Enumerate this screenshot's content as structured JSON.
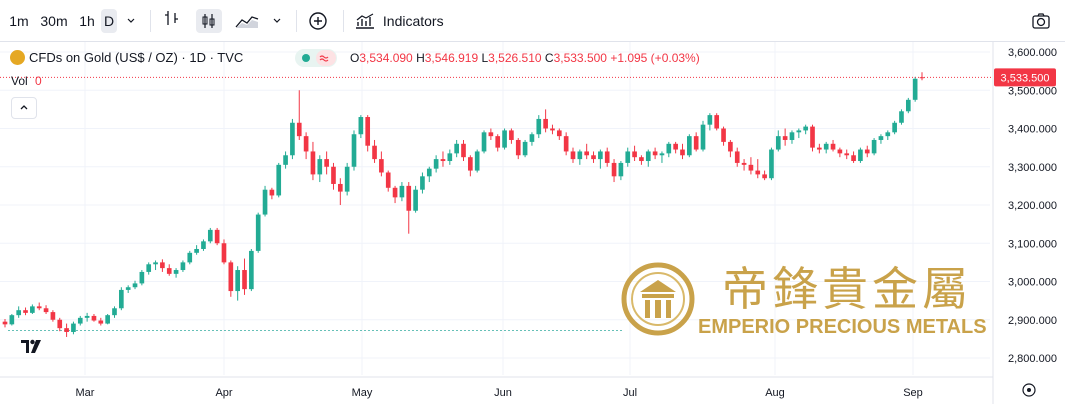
{
  "toolbar": {
    "intervals": [
      "1m",
      "30m",
      "1h",
      "D"
    ],
    "indicators_label": "Indicators",
    "icons": [
      "bar-style-icon",
      "candles-icon",
      "area-chart-icon",
      "chevron-down-icon",
      "add-comparison-icon",
      "indicators-icon",
      "camera-icon"
    ]
  },
  "legend": {
    "symbol": "CFDs on Gold (US$ / OZ) · 1D · TVC",
    "open_label": "O",
    "open": "3,534.090",
    "high_label": "H",
    "high": "3,546.919",
    "low_label": "L",
    "low": "3,526.510",
    "close_label": "C",
    "close": "3,533.500",
    "change": "+1.095 (+0.03%)",
    "vol_label": "Vol",
    "vol_value": "0"
  },
  "price_badge": "3,533.500",
  "watermark": {
    "chinese": "帝鋒貴金屬",
    "english": "EMPERIO PRECIOUS METALS",
    "tv_logo": "TV"
  },
  "colors": {
    "up": "#22ab94",
    "down": "#f23645",
    "badge": "#f23645",
    "gold": "#c9a24a"
  },
  "chart_data": {
    "type": "candlestick",
    "title": "CFDs on Gold (US$ / OZ) · 1D · TVC",
    "y_ticks": [
      "3,600.000",
      "3,500.000",
      "3,400.000",
      "3,300.000",
      "3,200.000",
      "3,100.000",
      "3,000.000",
      "2,900.000",
      "2,800.000"
    ],
    "x_ticks": [
      "Mar",
      "Apr",
      "May",
      "Jun",
      "Jul",
      "Aug",
      "Sep"
    ],
    "ylim": [
      2760,
      3640
    ],
    "last_price": 3533.5,
    "reference_line": 2872,
    "candles": [
      [
        2895,
        2902,
        2880,
        2888
      ],
      [
        2888,
        2915,
        2885,
        2912
      ],
      [
        2912,
        2935,
        2905,
        2925
      ],
      [
        2925,
        2932,
        2912,
        2918
      ],
      [
        2918,
        2940,
        2915,
        2935
      ],
      [
        2935,
        2945,
        2925,
        2930
      ],
      [
        2930,
        2938,
        2915,
        2920
      ],
      [
        2920,
        2925,
        2895,
        2900
      ],
      [
        2900,
        2905,
        2870,
        2878
      ],
      [
        2878,
        2890,
        2855,
        2868
      ],
      [
        2868,
        2895,
        2862,
        2890
      ],
      [
        2890,
        2910,
        2885,
        2905
      ],
      [
        2905,
        2918,
        2895,
        2910
      ],
      [
        2910,
        2915,
        2895,
        2898
      ],
      [
        2898,
        2905,
        2885,
        2890
      ],
      [
        2890,
        2915,
        2888,
        2912
      ],
      [
        2912,
        2935,
        2905,
        2930
      ],
      [
        2930,
        2985,
        2925,
        2978
      ],
      [
        2978,
        2990,
        2970,
        2985
      ],
      [
        2985,
        3002,
        2980,
        2995
      ],
      [
        2995,
        3030,
        2990,
        3025
      ],
      [
        3025,
        3050,
        3018,
        3045
      ],
      [
        3045,
        3055,
        3030,
        3050
      ],
      [
        3050,
        3058,
        3025,
        3035
      ],
      [
        3035,
        3045,
        3015,
        3020
      ],
      [
        3020,
        3035,
        3010,
        3030
      ],
      [
        3030,
        3055,
        3025,
        3050
      ],
      [
        3050,
        3080,
        3045,
        3075
      ],
      [
        3075,
        3095,
        3070,
        3085
      ],
      [
        3085,
        3110,
        3080,
        3105
      ],
      [
        3105,
        3140,
        3100,
        3135
      ],
      [
        3135,
        3140,
        3095,
        3100
      ],
      [
        3100,
        3110,
        3045,
        3050
      ],
      [
        3050,
        3055,
        2960,
        2975
      ],
      [
        2975,
        3040,
        2950,
        3030
      ],
      [
        3030,
        3060,
        2965,
        2980
      ],
      [
        2980,
        3085,
        2975,
        3080
      ],
      [
        3080,
        3180,
        3075,
        3175
      ],
      [
        3175,
        3250,
        3170,
        3240
      ],
      [
        3240,
        3245,
        3215,
        3225
      ],
      [
        3225,
        3310,
        3220,
        3305
      ],
      [
        3305,
        3340,
        3295,
        3330
      ],
      [
        3330,
        3425,
        3320,
        3415
      ],
      [
        3415,
        3500,
        3370,
        3380
      ],
      [
        3380,
        3390,
        3320,
        3340
      ],
      [
        3340,
        3365,
        3265,
        3280
      ],
      [
        3280,
        3330,
        3260,
        3320
      ],
      [
        3320,
        3340,
        3280,
        3300
      ],
      [
        3300,
        3310,
        3240,
        3255
      ],
      [
        3255,
        3270,
        3200,
        3235
      ],
      [
        3235,
        3310,
        3225,
        3300
      ],
      [
        3300,
        3395,
        3290,
        3385
      ],
      [
        3385,
        3435,
        3375,
        3430
      ],
      [
        3430,
        3435,
        3340,
        3355
      ],
      [
        3355,
        3370,
        3310,
        3320
      ],
      [
        3320,
        3340,
        3275,
        3285
      ],
      [
        3285,
        3290,
        3235,
        3245
      ],
      [
        3245,
        3250,
        3205,
        3220
      ],
      [
        3220,
        3260,
        3210,
        3250
      ],
      [
        3250,
        3260,
        3125,
        3185
      ],
      [
        3185,
        3250,
        3180,
        3240
      ],
      [
        3240,
        3285,
        3230,
        3275
      ],
      [
        3275,
        3300,
        3260,
        3295
      ],
      [
        3295,
        3330,
        3285,
        3320
      ],
      [
        3320,
        3340,
        3300,
        3315
      ],
      [
        3315,
        3345,
        3305,
        3335
      ],
      [
        3335,
        3370,
        3325,
        3360
      ],
      [
        3360,
        3370,
        3315,
        3325
      ],
      [
        3325,
        3330,
        3275,
        3290
      ],
      [
        3290,
        3345,
        3285,
        3340
      ],
      [
        3340,
        3395,
        3335,
        3390
      ],
      [
        3390,
        3400,
        3370,
        3380
      ],
      [
        3380,
        3385,
        3340,
        3350
      ],
      [
        3350,
        3400,
        3345,
        3395
      ],
      [
        3395,
        3400,
        3360,
        3370
      ],
      [
        3370,
        3375,
        3320,
        3330
      ],
      [
        3330,
        3370,
        3325,
        3365
      ],
      [
        3365,
        3390,
        3355,
        3385
      ],
      [
        3385,
        3435,
        3375,
        3425
      ],
      [
        3425,
        3450,
        3390,
        3400
      ],
      [
        3400,
        3410,
        3385,
        3395
      ],
      [
        3395,
        3400,
        3370,
        3380
      ],
      [
        3380,
        3390,
        3330,
        3340
      ],
      [
        3340,
        3350,
        3310,
        3320
      ],
      [
        3320,
        3345,
        3305,
        3340
      ],
      [
        3340,
        3360,
        3320,
        3330
      ],
      [
        3330,
        3340,
        3310,
        3320
      ],
      [
        3320,
        3345,
        3295,
        3340
      ],
      [
        3340,
        3350,
        3300,
        3310
      ],
      [
        3310,
        3320,
        3260,
        3275
      ],
      [
        3275,
        3315,
        3265,
        3310
      ],
      [
        3310,
        3350,
        3300,
        3340
      ],
      [
        3340,
        3355,
        3315,
        3325
      ],
      [
        3325,
        3330,
        3305,
        3315
      ],
      [
        3315,
        3345,
        3300,
        3340
      ],
      [
        3340,
        3350,
        3320,
        3330
      ],
      [
        3330,
        3340,
        3310,
        3335
      ],
      [
        3335,
        3365,
        3325,
        3360
      ],
      [
        3360,
        3365,
        3335,
        3345
      ],
      [
        3345,
        3360,
        3320,
        3330
      ],
      [
        3330,
        3385,
        3325,
        3380
      ],
      [
        3380,
        3390,
        3340,
        3345
      ],
      [
        3345,
        3420,
        3340,
        3410
      ],
      [
        3410,
        3440,
        3395,
        3435
      ],
      [
        3435,
        3440,
        3395,
        3400
      ],
      [
        3400,
        3405,
        3355,
        3365
      ],
      [
        3365,
        3370,
        3325,
        3340
      ],
      [
        3340,
        3350,
        3300,
        3310
      ],
      [
        3310,
        3320,
        3290,
        3305
      ],
      [
        3305,
        3325,
        3280,
        3290
      ],
      [
        3290,
        3320,
        3270,
        3280
      ],
      [
        3280,
        3290,
        3265,
        3270
      ],
      [
        3270,
        3350,
        3265,
        3345
      ],
      [
        3345,
        3395,
        3340,
        3380
      ],
      [
        3380,
        3400,
        3355,
        3370
      ],
      [
        3370,
        3395,
        3360,
        3390
      ],
      [
        3390,
        3400,
        3375,
        3395
      ],
      [
        3395,
        3410,
        3385,
        3405
      ],
      [
        3405,
        3410,
        3340,
        3350
      ],
      [
        3350,
        3360,
        3335,
        3345
      ],
      [
        3345,
        3365,
        3335,
        3360
      ],
      [
        3360,
        3370,
        3340,
        3345
      ],
      [
        3345,
        3350,
        3325,
        3335
      ],
      [
        3335,
        3345,
        3320,
        3330
      ],
      [
        3330,
        3340,
        3310,
        3315
      ],
      [
        3315,
        3350,
        3310,
        3345
      ],
      [
        3345,
        3355,
        3325,
        3335
      ],
      [
        3335,
        3375,
        3330,
        3370
      ],
      [
        3370,
        3385,
        3360,
        3380
      ],
      [
        3380,
        3395,
        3370,
        3390
      ],
      [
        3390,
        3420,
        3385,
        3415
      ],
      [
        3415,
        3450,
        3410,
        3445
      ],
      [
        3445,
        3480,
        3440,
        3475
      ],
      [
        3475,
        3535,
        3470,
        3530
      ],
      [
        3534,
        3547,
        3526,
        3533
      ]
    ]
  }
}
